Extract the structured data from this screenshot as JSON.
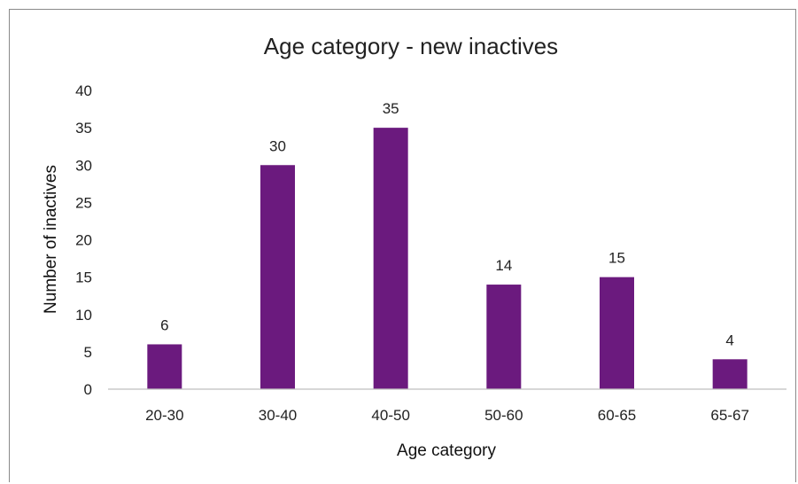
{
  "chart_data": {
    "type": "bar",
    "title": "Age category - new inactives",
    "xlabel": "Age category",
    "ylabel": "Number of inactives",
    "categories": [
      "20-30",
      "30-40",
      "40-50",
      "50-60",
      "60-65",
      "65-67"
    ],
    "values": [
      6,
      30,
      35,
      14,
      15,
      4
    ],
    "ylim": [
      0,
      40
    ],
    "yticks": [
      0,
      5,
      10,
      15,
      20,
      25,
      30,
      35,
      40
    ],
    "grid": false,
    "data_labels": true,
    "legend": "none",
    "bar_color": "#6b1a7e"
  }
}
